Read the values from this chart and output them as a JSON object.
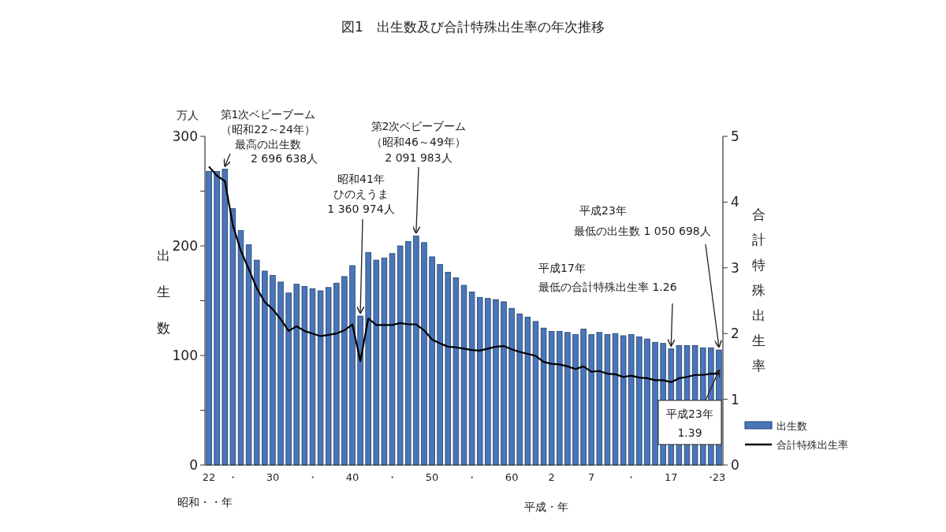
{
  "chart_data": {
    "type": "bar",
    "title": "図1　出生数及び合計特殊出生率の年次推移",
    "xlabel": "昭和・・年",
    "ylabel": "出生数",
    "y2label": "合計特殊出生率",
    "categories": [
      "22",
      null,
      null,
      "・",
      null,
      null,
      null,
      null,
      "30",
      null,
      null,
      null,
      null,
      "・",
      null,
      null,
      null,
      null,
      "40",
      null,
      null,
      null,
      null,
      "・",
      null,
      null,
      null,
      null,
      "50",
      null,
      null,
      null,
      null,
      "・",
      null,
      null,
      null,
      null,
      "60",
      null,
      null,
      null,
      null,
      "2",
      null,
      null,
      null,
      null,
      "7",
      null,
      null,
      null,
      null,
      "・",
      null,
      null,
      null,
      null,
      "17",
      null,
      null,
      null,
      null,
      "・",
      "23"
    ],
    "series": [
      {
        "name": "出生数",
        "color": "#4a76b8",
        "values": [
          268,
          268,
          270,
          234,
          214,
          201,
          187,
          177,
          173,
          167,
          157,
          165,
          163,
          161,
          159,
          162,
          166,
          172,
          182,
          136,
          194,
          187,
          189,
          193,
          200,
          204,
          209,
          203,
          190,
          183,
          176,
          171,
          164,
          158,
          153,
          152,
          151,
          149,
          143,
          138,
          135,
          131,
          125,
          122,
          122,
          121,
          119,
          124,
          119,
          121,
          119,
          120,
          118,
          119,
          117,
          115,
          112,
          111,
          106,
          109,
          109,
          109,
          107,
          107,
          105
        ]
      },
      {
        "name": "合計特殊出生率",
        "type": "line",
        "axis": "y2",
        "color": "#000000",
        "values": [
          4.54,
          4.4,
          4.32,
          3.65,
          3.26,
          2.98,
          2.69,
          2.48,
          2.37,
          2.22,
          2.04,
          2.11,
          2.04,
          2.0,
          1.96,
          1.98,
          2.0,
          2.05,
          2.14,
          1.58,
          2.23,
          2.13,
          2.13,
          2.13,
          2.16,
          2.14,
          2.14,
          2.05,
          1.91,
          1.85,
          1.8,
          1.79,
          1.77,
          1.75,
          1.74,
          1.77,
          1.8,
          1.81,
          1.76,
          1.72,
          1.69,
          1.66,
          1.57,
          1.54,
          1.53,
          1.5,
          1.46,
          1.5,
          1.42,
          1.43,
          1.39,
          1.38,
          1.34,
          1.36,
          1.33,
          1.32,
          1.29,
          1.29,
          1.26,
          1.32,
          1.34,
          1.37,
          1.37,
          1.39,
          1.39
        ]
      }
    ],
    "ylim": [
      0,
      300
    ],
    "yticks": [
      0,
      {
        "value": 50,
        "label": null
      },
      100,
      {
        "value": 150,
        "label": null
      },
      200,
      {
        "value": 250,
        "label": null
      },
      300
    ],
    "y2lim": [
      0,
      5
    ],
    "y2ticks": [
      0,
      1,
      2,
      3,
      4,
      5
    ],
    "legend": "bottom right",
    "annotations": [
      "万人",
      "第1次ベビーブーム",
      "（昭和22～24年）",
      "最高の出生数",
      "2 696 638人",
      "昭和41年",
      "ひのえうま",
      {
        "text": "1 360 974人",
        "y": 136
      },
      "第2次ベビーブーム",
      "（昭和46～49年）",
      {
        "text": "2 091 983人",
        "y": 209
      },
      "平成23年",
      {
        "text": "最低の出生数 1 050 698人",
        "x": "23",
        "y": 105
      },
      "平成17年",
      {
        "text": "最低の合計特殊出生率 1.26",
        "x": "17",
        "y": 106
      },
      "平成23年",
      "1.39",
      "平成・年"
    ]
  }
}
